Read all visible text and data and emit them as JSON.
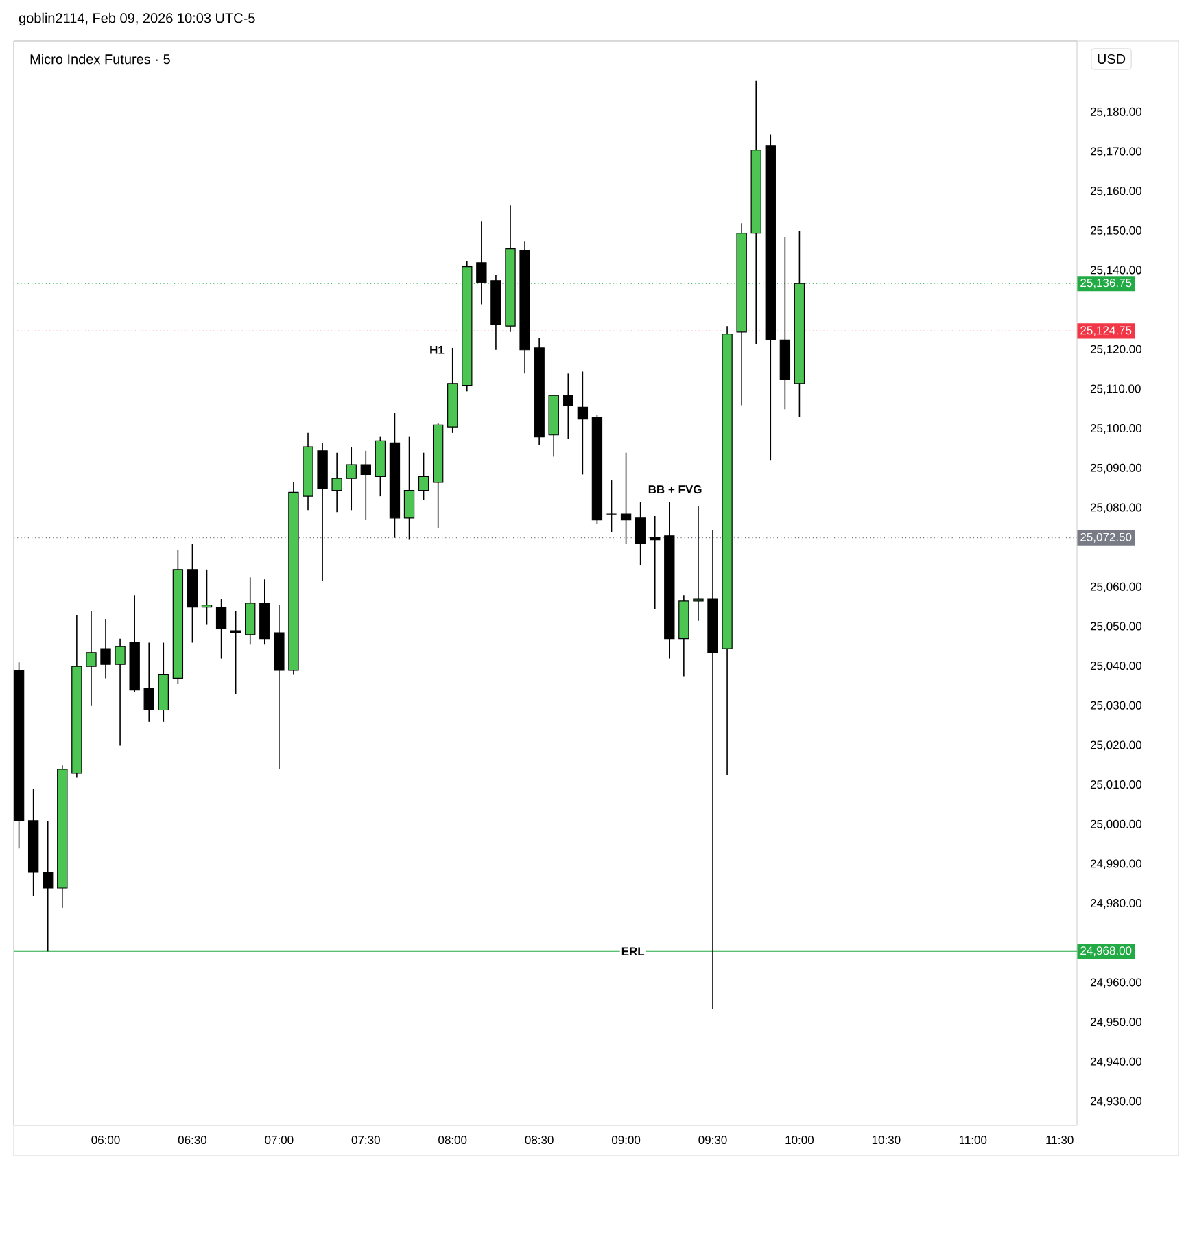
{
  "chart_data": {
    "type": "candlestick",
    "title": "Micro Index Futures · 5",
    "ylabel": "USD",
    "x": [
      5.5,
      5.5833,
      5.6667,
      5.75,
      5.8333,
      5.9167,
      6,
      6.0833,
      6.1667,
      6.25,
      6.3333,
      6.4167,
      6.5,
      6.5833,
      6.6667,
      6.75,
      6.8333,
      6.9167,
      7,
      7.0833,
      7.1667,
      7.25,
      7.3333,
      7.4167,
      7.5,
      7.5833,
      7.6667,
      7.75,
      7.8333,
      7.9167,
      8,
      8.0833,
      8.1667,
      8.25,
      8.3333,
      8.4167,
      8.5,
      8.5833,
      8.6667,
      8.75,
      8.8333,
      8.9167,
      9,
      9.0833,
      9.1667,
      9.25,
      9.3333,
      9.4167,
      9.5,
      9.5833,
      9.6667,
      9.75,
      9.8333,
      9.9167,
      10
    ],
    "ohlc": [
      [
        25039,
        25041,
        24994,
        25001
      ],
      [
        25001,
        25009,
        24982,
        24988
      ],
      [
        24988,
        25001,
        24968,
        24984
      ],
      [
        24984,
        25015,
        24979,
        25014
      ],
      [
        25013,
        25053,
        25012,
        25040
      ],
      [
        25040,
        25054,
        25030,
        25043.5
      ],
      [
        25044.5,
        25052,
        25037,
        25040.5
      ],
      [
        25040.5,
        25047,
        25020,
        25045
      ],
      [
        25046,
        25058,
        25033.5,
        25034
      ],
      [
        25034.5,
        25046,
        25026,
        25029
      ],
      [
        25029,
        25046,
        25026,
        25038
      ],
      [
        25037,
        25069.5,
        25035.5,
        25064.5
      ],
      [
        25064.5,
        25071,
        25046,
        25055
      ],
      [
        25055,
        25064.5,
        25050.5,
        25055.5
      ],
      [
        25055,
        25057,
        25042,
        25049.5
      ],
      [
        25049,
        25054,
        25033,
        25048.5
      ],
      [
        25048,
        25062.5,
        25045.5,
        25056
      ],
      [
        25056,
        25062,
        25045.5,
        25047
      ],
      [
        25048.5,
        25055.5,
        25014,
        25039
      ],
      [
        25039,
        25086.5,
        25038,
        25084
      ],
      [
        25083,
        25099,
        25079.5,
        25095.5
      ],
      [
        25094.5,
        25096.5,
        25061.5,
        25085
      ],
      [
        25084.5,
        25094,
        25079,
        25087.5
      ],
      [
        25087.5,
        25095.5,
        25079.5,
        25091
      ],
      [
        25091,
        25094.5,
        25077,
        25088.5
      ],
      [
        25088,
        25098,
        25083,
        25097
      ],
      [
        25096.5,
        25104,
        25072.5,
        25077.5
      ],
      [
        25077.5,
        25098,
        25072,
        25084.5
      ],
      [
        25084.5,
        25094,
        25082,
        25088
      ],
      [
        25086.5,
        25101.5,
        25075,
        25101
      ],
      [
        25100.5,
        25120.5,
        25099,
        25111.5
      ],
      [
        25111,
        25142.5,
        25109.5,
        25141
      ],
      [
        25142,
        25152.5,
        25131.5,
        25137
      ],
      [
        25137.5,
        25139,
        25120,
        25126.5
      ],
      [
        25126,
        25156.5,
        25124.5,
        25145.5
      ],
      [
        25145,
        25147.5,
        25114,
        25120
      ],
      [
        25120.5,
        25123,
        25096,
        25098
      ],
      [
        25098.5,
        25108.5,
        25093,
        25108.5
      ],
      [
        25108.5,
        25114,
        25097.5,
        25106
      ],
      [
        25105.5,
        25114.5,
        25088.5,
        25102.5
      ],
      [
        25103,
        25103.5,
        25076,
        25077
      ],
      [
        25078.5,
        25087,
        25074,
        25078.5
      ],
      [
        25078.5,
        25094,
        25071,
        25077
      ],
      [
        25077.5,
        25081.5,
        25065.5,
        25071
      ],
      [
        25072.5,
        25078,
        25054.5,
        25072
      ],
      [
        25073,
        25081.5,
        25042,
        25047
      ],
      [
        25047,
        25058,
        25037.5,
        25056.5
      ],
      [
        25056.5,
        25080.5,
        25051.5,
        25057
      ],
      [
        25057,
        25074.5,
        24953.5,
        25043.5
      ],
      [
        25044.5,
        25126,
        25012.5,
        25124
      ],
      [
        25124.5,
        25152,
        25106,
        25149.5
      ],
      [
        25149.5,
        25188,
        25121.5,
        25170.5
      ],
      [
        25171.5,
        25174.5,
        25092,
        25122.5
      ],
      [
        25122.5,
        25148.5,
        25105,
        25112.5
      ],
      [
        25111.5,
        25150,
        25103,
        25136.75
      ]
    ],
    "colors": [
      "#000000",
      "#000000",
      "#000000",
      "#4cc552",
      "#4cc552",
      "#4cc552",
      "#000000",
      "#4cc552",
      "#000000",
      "#000000",
      "#4cc552",
      "#4cc552",
      "#000000",
      "#4cc552",
      "#000000",
      "#000000",
      "#4cc552",
      "#000000",
      "#000000",
      "#4cc552",
      "#4cc552",
      "#000000",
      "#4cc552",
      "#4cc552",
      "#000000",
      "#4cc552",
      "#000000",
      "#4cc552",
      "#4cc552",
      "#4cc552",
      "#4cc552",
      "#4cc552",
      "#000000",
      "#000000",
      "#4cc552",
      "#000000",
      "#000000",
      "#4cc552",
      "#000000",
      "#000000",
      "#000000",
      "#000000",
      "#000000",
      "#000000",
      "#000000",
      "#000000",
      "#4cc552",
      "#4cc552",
      "#000000",
      "#4cc552",
      "#4cc552",
      "#4cc552",
      "#000000",
      "#000000",
      "#4cc552"
    ],
    "xlim": [
      5.47,
      11.6
    ],
    "ylim": [
      24924,
      25198
    ],
    "xticks": [
      {
        "value": 6,
        "label": "06:00"
      },
      {
        "value": 6.5,
        "label": "06:30"
      },
      {
        "value": 7,
        "label": "07:00"
      },
      {
        "value": 7.5,
        "label": "07:30"
      },
      {
        "value": 8,
        "label": "08:00"
      },
      {
        "value": 8.5,
        "label": "08:30"
      },
      {
        "value": 9,
        "label": "09:00"
      },
      {
        "value": 9.5,
        "label": "09:30"
      },
      {
        "value": 10,
        "label": "10:00"
      },
      {
        "value": 10.5,
        "label": "10:30"
      },
      {
        "value": 11,
        "label": "11:00"
      },
      {
        "value": 11.5,
        "label": "11:30"
      }
    ],
    "yticks": [
      {
        "value": 24930,
        "label": "24,930.00"
      },
      {
        "value": 24940,
        "label": "24,940.00"
      },
      {
        "value": 24950,
        "label": "24,950.00"
      },
      {
        "value": 24960,
        "label": "24,960.00"
      },
      {
        "value": 24980,
        "label": "24,980.00"
      },
      {
        "value": 24990,
        "label": "24,990.00"
      },
      {
        "value": 25000,
        "label": "25,000.00"
      },
      {
        "value": 25010,
        "label": "25,010.00"
      },
      {
        "value": 25020,
        "label": "25,020.00"
      },
      {
        "value": 25030,
        "label": "25,030.00"
      },
      {
        "value": 25040,
        "label": "25,040.00"
      },
      {
        "value": 25050,
        "label": "25,050.00"
      },
      {
        "value": 25060,
        "label": "25,060.00"
      },
      {
        "value": 25080,
        "label": "25,080.00"
      },
      {
        "value": 25090,
        "label": "25,090.00"
      },
      {
        "value": 25100,
        "label": "25,100.00"
      },
      {
        "value": 25110,
        "label": "25,110.00"
      },
      {
        "value": 25120,
        "label": "25,120.00"
      },
      {
        "value": 25140,
        "label": "25,140.00"
      },
      {
        "value": 25150,
        "label": "25,150.00"
      },
      {
        "value": 25160,
        "label": "25,160.00"
      },
      {
        "value": 25170,
        "label": "25,170.00"
      },
      {
        "value": 25180,
        "label": "25,180.00"
      }
    ],
    "ref_lines": [
      {
        "axis": "y",
        "value": 25136.75,
        "label": "25,136.75",
        "color": "#22ab44",
        "line_style": "dotted"
      },
      {
        "axis": "y",
        "value": 25124.75,
        "label": "25,124.75",
        "color": "#f23645",
        "line_style": "dotted"
      },
      {
        "axis": "y",
        "value": 25072.5,
        "label": "25,072.50",
        "color": "#787b86",
        "line_style": "dotted"
      },
      {
        "axis": "y",
        "value": 24968,
        "label": "24,968.00",
        "color": "#22ab44",
        "line_style": "solid"
      }
    ],
    "annotations": [
      {
        "text": "H1",
        "x": 7.91,
        "y": 25120
      },
      {
        "text": "BB + FVG",
        "x": 9.4167,
        "y": 25080.5
      },
      {
        "text": "ERL",
        "x": 9.04,
        "y": 24968
      },
      "goblin2114, Feb 09, 2026 10:03 UTC-5"
    ],
    "grid": false
  }
}
